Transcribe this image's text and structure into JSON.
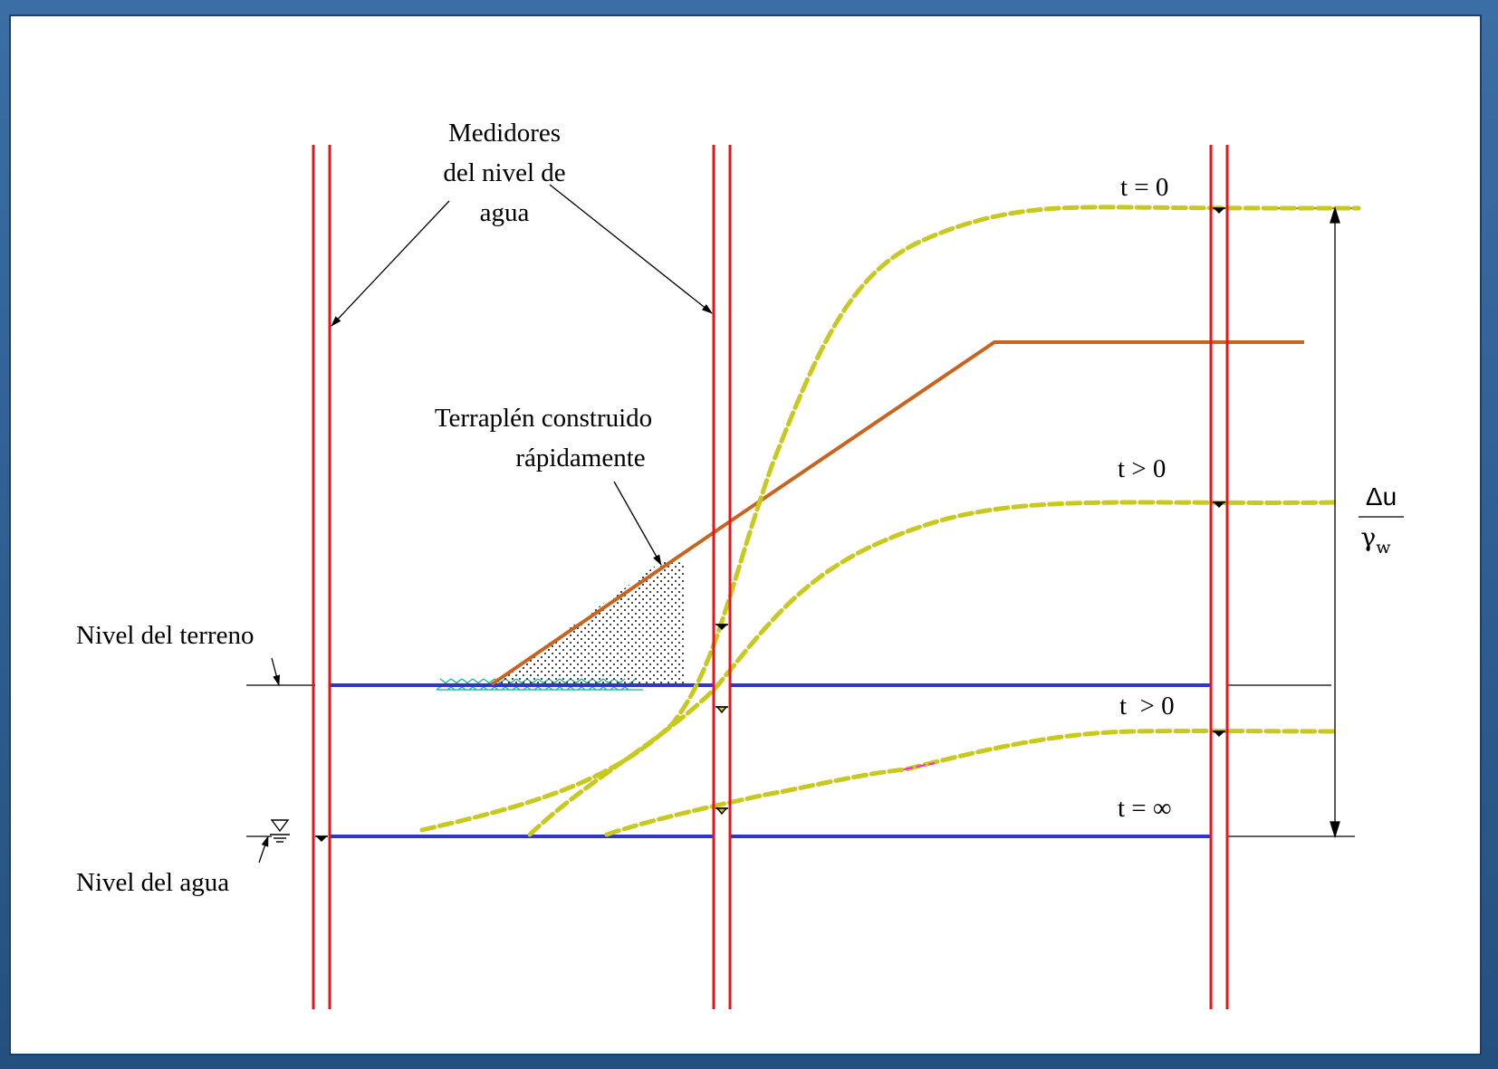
{
  "labels": {
    "gauges_line1": "Medidores",
    "gauges_line2": "del nivel de",
    "gauges_line3": "agua",
    "embankment_line1": "Terraplén construido",
    "embankment_line2": "rápidamente",
    "ground_level": "Nivel del terreno",
    "water_level": "Nivel del agua",
    "t0": "t = 0",
    "t_pos_1": "t > 0",
    "t_pos_2": "t  > 0",
    "t_inf": "t = ∞",
    "delta_u": "Δu",
    "gamma": "γ",
    "gamma_sub": "w"
  },
  "colors": {
    "piezometer": "#e8141c",
    "level_line": "#3236c8",
    "embankment": "#c8641e",
    "pressure_curve": "#c8c81e",
    "ground_hatch": "#14b496",
    "annotation": "#000000"
  },
  "icons": {
    "water_table": "inverted-triangle-icon",
    "water_marker": "meniscus-icon"
  }
}
